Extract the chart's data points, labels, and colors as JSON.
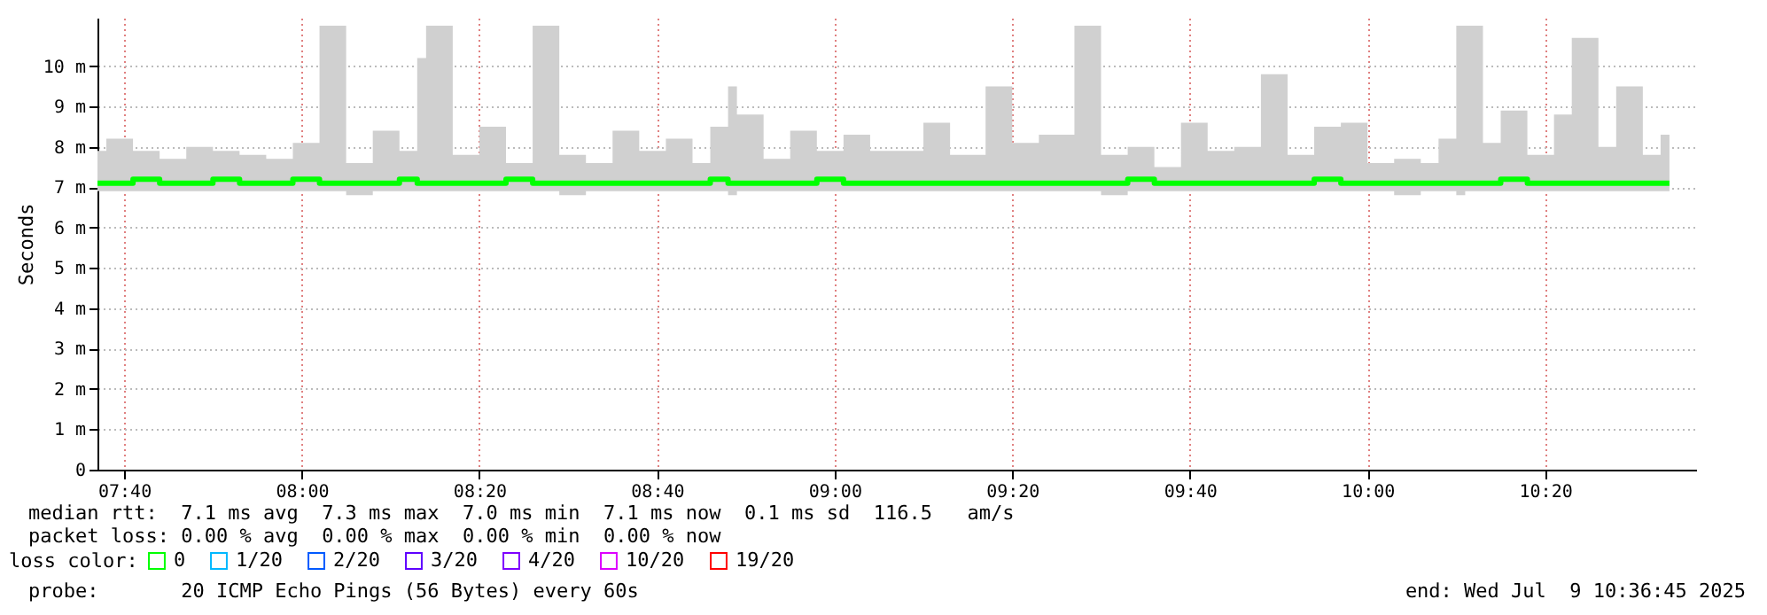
{
  "chart_data": {
    "type": "line",
    "ylabel": "Seconds",
    "legend_title": "loss color:",
    "legend": "bottom",
    "grid": true,
    "x": [
      "2025-07-09T07:37",
      "2025-07-09T07:38",
      "2025-07-09T07:41",
      "2025-07-09T07:44",
      "2025-07-09T07:47",
      "2025-07-09T07:50",
      "2025-07-09T07:53",
      "2025-07-09T07:56",
      "2025-07-09T07:59",
      "2025-07-09T08:02",
      "2025-07-09T08:05",
      "2025-07-09T08:08",
      "2025-07-09T08:11",
      "2025-07-09T08:13",
      "2025-07-09T08:14",
      "2025-07-09T08:17",
      "2025-07-09T08:20",
      "2025-07-09T08:23",
      "2025-07-09T08:26",
      "2025-07-09T08:29",
      "2025-07-09T08:32",
      "2025-07-09T08:35",
      "2025-07-09T08:38",
      "2025-07-09T08:41",
      "2025-07-09T08:44",
      "2025-07-09T08:46",
      "2025-07-09T08:48",
      "2025-07-09T08:49",
      "2025-07-09T08:52",
      "2025-07-09T08:55",
      "2025-07-09T08:58",
      "2025-07-09T09:01",
      "2025-07-09T09:04",
      "2025-07-09T09:07",
      "2025-07-09T09:10",
      "2025-07-09T09:13",
      "2025-07-09T09:17",
      "2025-07-09T09:20",
      "2025-07-09T09:23",
      "2025-07-09T09:27",
      "2025-07-09T09:30",
      "2025-07-09T09:33",
      "2025-07-09T09:36",
      "2025-07-09T09:39",
      "2025-07-09T09:42",
      "2025-07-09T09:45",
      "2025-07-09T09:48",
      "2025-07-09T09:51",
      "2025-07-09T09:54",
      "2025-07-09T09:57",
      "2025-07-09T10:00",
      "2025-07-09T10:03",
      "2025-07-09T10:06",
      "2025-07-09T10:08",
      "2025-07-09T10:10",
      "2025-07-09T10:11",
      "2025-07-09T10:13",
      "2025-07-09T10:15",
      "2025-07-09T10:18",
      "2025-07-09T10:21",
      "2025-07-09T10:23",
      "2025-07-09T10:26",
      "2025-07-09T10:28",
      "2025-07-09T10:31",
      "2025-07-09T10:33",
      "2025-07-09T10:34"
    ],
    "series": [
      {
        "name": "0",
        "color": "#00ff00",
        "values": [
          7.1,
          7.1,
          7.2,
          7.1,
          7.1,
          7.2,
          7.1,
          7.1,
          7.2,
          7.1,
          7.1,
          7.1,
          7.2,
          7.1,
          7.1,
          7.1,
          7.1,
          7.2,
          7.1,
          7.1,
          7.1,
          7.1,
          7.1,
          7.1,
          7.1,
          7.2,
          7.1,
          7.1,
          7.1,
          7.1,
          7.2,
          7.1,
          7.1,
          7.1,
          7.1,
          7.1,
          7.1,
          7.1,
          7.1,
          7.1,
          7.1,
          7.2,
          7.1,
          7.1,
          7.1,
          7.1,
          7.1,
          7.1,
          7.2,
          7.1,
          7.1,
          7.1,
          7.1,
          7.1,
          7.1,
          7.1,
          7.1,
          7.2,
          7.1,
          7.1,
          7.1,
          7.1,
          7.1,
          7.1,
          7.1,
          7.1
        ],
        "lower": [
          6.9,
          6.9,
          6.9,
          6.9,
          6.9,
          6.9,
          6.9,
          6.9,
          6.9,
          6.9,
          6.8,
          6.9,
          6.9,
          6.9,
          6.9,
          6.9,
          6.9,
          6.9,
          6.9,
          6.8,
          6.9,
          6.9,
          6.9,
          6.9,
          6.9,
          6.9,
          6.8,
          6.9,
          6.9,
          6.9,
          6.9,
          6.9,
          6.9,
          6.9,
          6.9,
          6.9,
          6.9,
          6.9,
          6.9,
          6.9,
          6.8,
          6.9,
          6.9,
          6.9,
          6.9,
          6.9,
          6.9,
          6.9,
          6.9,
          6.9,
          6.9,
          6.8,
          6.9,
          6.9,
          6.8,
          6.9,
          6.9,
          6.9,
          6.9,
          6.9,
          6.9,
          6.9,
          6.9,
          6.9,
          6.9,
          6.9
        ],
        "upper": [
          7.9,
          8.2,
          7.9,
          7.7,
          8.0,
          7.9,
          7.8,
          7.7,
          8.1,
          11.0,
          7.6,
          8.4,
          7.9,
          10.2,
          11.0,
          7.8,
          8.5,
          7.6,
          11.0,
          7.8,
          7.6,
          8.4,
          7.9,
          8.2,
          7.6,
          8.5,
          9.5,
          8.8,
          7.7,
          8.4,
          7.9,
          8.3,
          7.9,
          7.9,
          8.6,
          7.8,
          9.5,
          8.1,
          8.3,
          11.0,
          7.8,
          8.0,
          7.5,
          8.6,
          7.9,
          8.0,
          9.8,
          7.8,
          8.5,
          8.6,
          7.6,
          7.7,
          7.6,
          8.2,
          11.0,
          11.0,
          8.1,
          8.9,
          7.8,
          8.8,
          10.7,
          8.0,
          9.5,
          7.8,
          8.3,
          7.7
        ]
      },
      {
        "name": "1/20",
        "color": "#00b8ff",
        "values": [
          null,
          null,
          null,
          null,
          null,
          null,
          null,
          null,
          null,
          null,
          null,
          null,
          null,
          null,
          null,
          null,
          null,
          null,
          null,
          null,
          null,
          null,
          null,
          null,
          null,
          null,
          null,
          null,
          null,
          null,
          null,
          null,
          null,
          null,
          null,
          null,
          null,
          null,
          null,
          null,
          null,
          null,
          null,
          null,
          null,
          null,
          null,
          null,
          null,
          null,
          null,
          null,
          null,
          null,
          null,
          null,
          null,
          null,
          null,
          null,
          null,
          null,
          null,
          null,
          null,
          null
        ]
      },
      {
        "name": "2/20",
        "color": "#0059ff",
        "values": [
          null,
          null,
          null,
          null,
          null,
          null,
          null,
          null,
          null,
          null,
          null,
          null,
          null,
          null,
          null,
          null,
          null,
          null,
          null,
          null,
          null,
          null,
          null,
          null,
          null,
          null,
          null,
          null,
          null,
          null,
          null,
          null,
          null,
          null,
          null,
          null,
          null,
          null,
          null,
          null,
          null,
          null,
          null,
          null,
          null,
          null,
          null,
          null,
          null,
          null,
          null,
          null,
          null,
          null,
          null,
          null,
          null,
          null,
          null,
          null,
          null,
          null,
          null,
          null,
          null,
          null
        ]
      },
      {
        "name": "3/20",
        "color": "#5e00ff",
        "values": [
          null,
          null,
          null,
          null,
          null,
          null,
          null,
          null,
          null,
          null,
          null,
          null,
          null,
          null,
          null,
          null,
          null,
          null,
          null,
          null,
          null,
          null,
          null,
          null,
          null,
          null,
          null,
          null,
          null,
          null,
          null,
          null,
          null,
          null,
          null,
          null,
          null,
          null,
          null,
          null,
          null,
          null,
          null,
          null,
          null,
          null,
          null,
          null,
          null,
          null,
          null,
          null,
          null,
          null,
          null,
          null,
          null,
          null,
          null,
          null,
          null,
          null,
          null,
          null,
          null,
          null
        ]
      },
      {
        "name": "4/20",
        "color": "#7e00ff",
        "values": [
          null,
          null,
          null,
          null,
          null,
          null,
          null,
          null,
          null,
          null,
          null,
          null,
          null,
          null,
          null,
          null,
          null,
          null,
          null,
          null,
          null,
          null,
          null,
          null,
          null,
          null,
          null,
          null,
          null,
          null,
          null,
          null,
          null,
          null,
          null,
          null,
          null,
          null,
          null,
          null,
          null,
          null,
          null,
          null,
          null,
          null,
          null,
          null,
          null,
          null,
          null,
          null,
          null,
          null,
          null,
          null,
          null,
          null,
          null,
          null,
          null,
          null,
          null,
          null,
          null,
          null
        ]
      },
      {
        "name": "10/20",
        "color": "#dd00ff",
        "values": [
          null,
          null,
          null,
          null,
          null,
          null,
          null,
          null,
          null,
          null,
          null,
          null,
          null,
          null,
          null,
          null,
          null,
          null,
          null,
          null,
          null,
          null,
          null,
          null,
          null,
          null,
          null,
          null,
          null,
          null,
          null,
          null,
          null,
          null,
          null,
          null,
          null,
          null,
          null,
          null,
          null,
          null,
          null,
          null,
          null,
          null,
          null,
          null,
          null,
          null,
          null,
          null,
          null,
          null,
          null,
          null,
          null,
          null,
          null,
          null,
          null,
          null,
          null,
          null,
          null,
          null
        ]
      },
      {
        "name": "19/20",
        "color": "#ff0000",
        "values": [
          null,
          null,
          null,
          null,
          null,
          null,
          null,
          null,
          null,
          null,
          null,
          null,
          null,
          null,
          null,
          null,
          null,
          null,
          null,
          null,
          null,
          null,
          null,
          null,
          null,
          null,
          null,
          null,
          null,
          null,
          null,
          null,
          null,
          null,
          null,
          null,
          null,
          null,
          null,
          null,
          null,
          null,
          null,
          null,
          null,
          null,
          null,
          null,
          null,
          null,
          null,
          null,
          null,
          null,
          null,
          null,
          null,
          null,
          null,
          null,
          null,
          null,
          null,
          null,
          null,
          null
        ]
      }
    ],
    "xlim": [
      "2025-07-09T07:37",
      "2025-07-09T10:37"
    ],
    "xticks": [
      {
        "value": "2025-07-09T07:40",
        "label": "07:40"
      },
      {
        "value": "2025-07-09T08:00",
        "label": "08:00"
      },
      {
        "value": "2025-07-09T08:20",
        "label": "08:20"
      },
      {
        "value": "2025-07-09T08:40",
        "label": "08:40"
      },
      {
        "value": "2025-07-09T09:00",
        "label": "09:00"
      },
      {
        "value": "2025-07-09T09:20",
        "label": "09:20"
      },
      {
        "value": "2025-07-09T09:40",
        "label": "09:40"
      },
      {
        "value": "2025-07-09T10:00",
        "label": "10:00"
      },
      {
        "value": "2025-07-09T10:20",
        "label": "10:20"
      }
    ],
    "ylim": [
      0,
      11.2
    ],
    "yticks": [
      0,
      {
        "value": 1,
        "label": "1 m"
      },
      {
        "value": 2,
        "label": "2 m"
      },
      {
        "value": 3,
        "label": "3 m"
      },
      {
        "value": 4,
        "label": "4 m"
      },
      {
        "value": 5,
        "label": "5 m"
      },
      {
        "value": 6,
        "label": "6 m"
      },
      {
        "value": 7,
        "label": "7 m"
      },
      {
        "value": 8,
        "label": "8 m"
      },
      {
        "value": 9,
        "label": "9 m"
      },
      {
        "value": 10,
        "label": "10 m"
      }
    ],
    "annotations": [
      "median rtt:  7.1 ms avg  7.3 ms max  7.0 ms min  7.1 ms now  0.1 ms sd  116.5   am/s",
      "packet loss: 0.00 % avg  0.00 % max  0.00 % min  0.00 % now",
      "probe:       20 ICMP Echo Pings (56 Bytes) every 60s",
      "end: Wed Jul  9 10:36:45 2025"
    ]
  }
}
